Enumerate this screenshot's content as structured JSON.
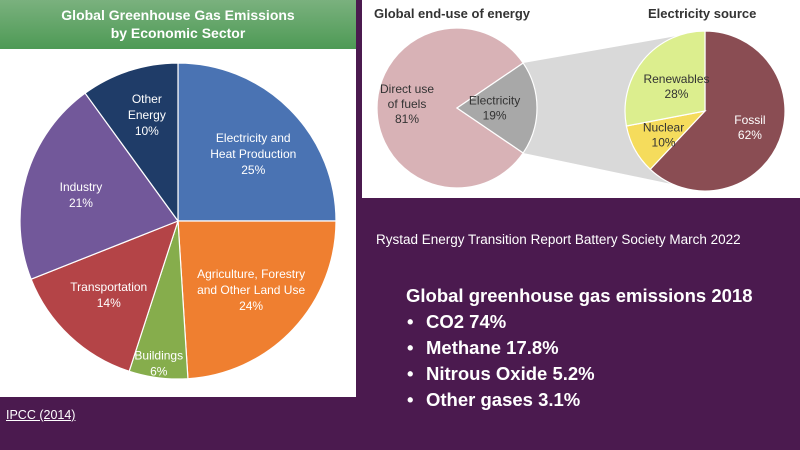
{
  "chart_data": [
    {
      "type": "pie",
      "title_lines": [
        "Global Greenhouse Gas Emissions",
        "by Economic Sector"
      ],
      "slices": [
        {
          "label_lines": [
            "Electricity and",
            "Heat Production"
          ],
          "value_label": "25%",
          "value": 25,
          "color": "#4a73b3"
        },
        {
          "label_lines": [
            "Agriculture, Forestry",
            "and Other Land Use"
          ],
          "value_label": "24%",
          "value": 24,
          "color": "#ef7f30"
        },
        {
          "label_lines": [
            "Buildings"
          ],
          "value_label": "6%",
          "value": 6,
          "color": "#86ad4c"
        },
        {
          "label_lines": [
            "Transportation"
          ],
          "value_label": "14%",
          "value": 14,
          "color": "#b44447"
        },
        {
          "label_lines": [
            "Industry"
          ],
          "value_label": "21%",
          "value": 21,
          "color": "#72589a"
        },
        {
          "label_lines": [
            "Other",
            "Energy"
          ],
          "value_label": "10%",
          "value": 10,
          "color": "#1f3c68"
        }
      ]
    },
    {
      "type": "pie",
      "title": "Global end-use of energy",
      "slices": [
        {
          "label_lines": [
            "Direct use",
            "of fuels"
          ],
          "value_label": "81%",
          "value": 81,
          "color": "#d8b2b6"
        },
        {
          "label_lines": [
            "Electricity"
          ],
          "value_label": "19%",
          "value": 19,
          "color": "#a8a8a8"
        }
      ]
    },
    {
      "type": "pie",
      "title": "Electricity source",
      "slices": [
        {
          "label_lines": [
            "Fossil"
          ],
          "value_label": "62%",
          "value": 62,
          "color": "#8a4d53"
        },
        {
          "label_lines": [
            "Nuclear"
          ],
          "value_label": "10%",
          "value": 10,
          "color": "#f5dc5c"
        },
        {
          "label_lines": [
            "Renewables"
          ],
          "value_label": "28%",
          "value": 28,
          "color": "#dcee8e"
        }
      ]
    }
  ],
  "source_credit": "Rystad Energy Transition Report Battery Society March 2022",
  "emissions": {
    "title": "Global greenhouse gas emissions 2018",
    "items": [
      "CO2 74%",
      "Methane 17.8%",
      "Nitrous Oxide 5.2%",
      "Other gases 3.1%"
    ]
  },
  "ipcc_link": "IPCC (2014)"
}
